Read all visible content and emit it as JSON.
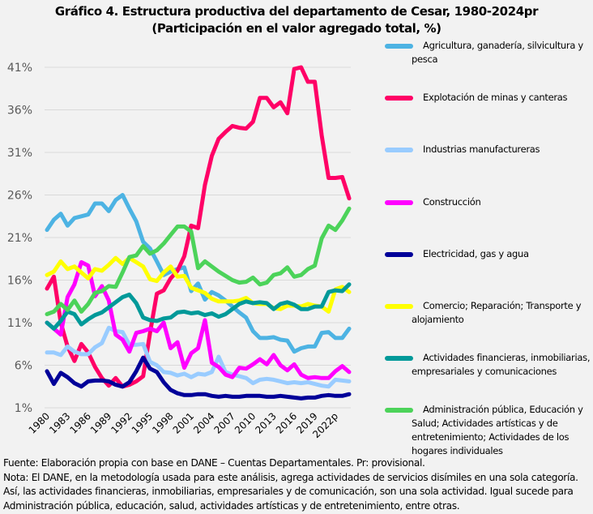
{
  "title_line1": "Gráfico 4. Estructura productiva del departamento de Cesar, 1980-2024pr",
  "title_line2": "(Participación en el valor agregado total, %)",
  "chart_data": {
    "type": "line",
    "title": "Gráfico 4. Estructura productiva del departamento de Cesar, 1980-2024pr (Participación en el valor agregado total, %)",
    "xlabel": "",
    "ylabel": "",
    "ylim": [
      1,
      41
    ],
    "yticks": [
      1,
      6,
      11,
      16,
      21,
      26,
      31,
      36,
      41
    ],
    "ytick_labels": [
      "1%",
      "6%",
      "11%",
      "16%",
      "21%",
      "26%",
      "31%",
      "36%",
      "41%"
    ],
    "grid": true,
    "legend_position": "right",
    "x": [
      1980,
      1981,
      1982,
      1983,
      1984,
      1985,
      1986,
      1987,
      1988,
      1989,
      1990,
      1991,
      1992,
      1993,
      1994,
      1995,
      1996,
      1997,
      1998,
      1999,
      2000,
      2001,
      2002,
      2003,
      2004,
      2005,
      2006,
      2007,
      2008,
      2009,
      2010,
      2011,
      2012,
      2013,
      2014,
      2015,
      2016,
      2017,
      2018,
      2019,
      2020,
      2021,
      2022,
      2023,
      2024
    ],
    "xtick_labels": [
      "1980",
      "1983",
      "1986",
      "1989",
      "1992",
      "1995",
      "1998",
      "2001",
      "2004",
      "2007",
      "2010",
      "2013",
      "2016",
      "2019",
      "2022p"
    ],
    "series": [
      {
        "name": "Agricultura, ganadería, silvicultura y pesca",
        "color": "#4db3e3",
        "values": [
          21.9,
          23.1,
          23.8,
          22.4,
          23.3,
          23.5,
          23.7,
          25.0,
          25.0,
          24.1,
          25.4,
          26.0,
          24.4,
          22.9,
          20.5,
          19.7,
          18.2,
          16.6,
          17.0,
          17.3,
          17.5,
          14.7,
          15.6,
          13.7,
          14.6,
          14.2,
          13.6,
          12.9,
          12.2,
          11.6,
          10.0,
          9.2,
          9.2,
          9.3,
          9.0,
          8.9,
          7.6,
          8.0,
          8.2,
          8.2,
          9.8,
          9.9,
          9.2,
          9.2,
          10.3
        ]
      },
      {
        "name": "Explotación de minas y canteras",
        "color": "#ff0066",
        "values": [
          15.0,
          16.4,
          11.0,
          8.2,
          6.5,
          8.5,
          7.5,
          5.8,
          4.5,
          3.6,
          4.5,
          3.5,
          3.7,
          4.1,
          4.7,
          9.8,
          14.4,
          14.8,
          16.2,
          17.1,
          18.8,
          22.4,
          22.1,
          27.2,
          30.6,
          32.6,
          33.4,
          34.1,
          33.9,
          33.8,
          34.6,
          37.4,
          37.4,
          36.3,
          36.9,
          35.6,
          40.8,
          41.0,
          39.3,
          39.3,
          33.0,
          28.0,
          28.0,
          28.1,
          25.6
        ]
      },
      {
        "name": "Industrias manufactureras",
        "color": "#99ccff",
        "values": [
          7.5,
          7.5,
          7.2,
          8.2,
          7.6,
          7.3,
          7.3,
          8.1,
          8.6,
          10.4,
          10.0,
          9.9,
          8.4,
          8.4,
          8.5,
          6.4,
          6.0,
          5.2,
          5.1,
          4.8,
          5.0,
          4.6,
          5.0,
          4.9,
          5.2,
          7.0,
          5.2,
          4.9,
          4.7,
          4.5,
          3.9,
          4.3,
          4.4,
          4.3,
          4.1,
          3.9,
          4.0,
          3.9,
          4.0,
          3.8,
          3.6,
          3.5,
          4.3,
          4.2,
          4.1
        ]
      },
      {
        "name": "Construcción",
        "color": "#ff00ff",
        "values": [
          11.0,
          10.3,
          9.6,
          14.0,
          15.5,
          18.1,
          17.7,
          14.1,
          15.3,
          13.6,
          9.6,
          9.0,
          7.6,
          9.8,
          10.0,
          10.3,
          10.0,
          11.0,
          8.0,
          8.7,
          5.7,
          7.4,
          8.0,
          11.3,
          6.3,
          5.8,
          4.9,
          4.6,
          5.7,
          5.6,
          6.1,
          6.7,
          6.1,
          7.2,
          6.0,
          5.4,
          6.1,
          4.9,
          4.5,
          4.6,
          4.5,
          4.5,
          5.3,
          5.9,
          5.2
        ]
      },
      {
        "name": "Electricidad, gas y agua",
        "color": "#000099",
        "values": [
          5.3,
          3.8,
          5.1,
          4.6,
          3.9,
          3.5,
          4.1,
          4.2,
          4.2,
          4.1,
          3.7,
          3.5,
          4.0,
          5.3,
          6.9,
          5.6,
          5.2,
          4.0,
          3.1,
          2.7,
          2.5,
          2.5,
          2.6,
          2.6,
          2.4,
          2.3,
          2.4,
          2.3,
          2.3,
          2.4,
          2.4,
          2.4,
          2.3,
          2.3,
          2.4,
          2.3,
          2.2,
          2.1,
          2.2,
          2.2,
          2.4,
          2.5,
          2.4,
          2.4,
          2.6
        ]
      },
      {
        "name": "Comercio; Reparación; Transporte y alojamiento",
        "color": "#ffff00",
        "values": [
          16.6,
          17.0,
          18.2,
          17.3,
          17.6,
          16.9,
          16.2,
          17.3,
          17.1,
          17.8,
          18.6,
          17.9,
          18.6,
          18.1,
          17.6,
          16.1,
          15.9,
          16.9,
          17.6,
          16.4,
          16.5,
          15.1,
          14.8,
          14.5,
          13.8,
          13.5,
          13.5,
          13.5,
          13.6,
          13.9,
          13.3,
          13.2,
          13.2,
          12.7,
          12.6,
          13.0,
          13.0,
          12.9,
          13.2,
          13.0,
          12.9,
          12.3,
          14.9,
          15.2,
          14.6
        ]
      },
      {
        "name": "Actividades financieras, inmobiliarias, empresariales y comunicaciones",
        "color": "#009999",
        "values": [
          11.0,
          10.3,
          11.2,
          12.3,
          12.0,
          10.8,
          11.4,
          11.9,
          12.2,
          12.8,
          13.4,
          14.0,
          14.3,
          13.3,
          11.6,
          11.3,
          11.2,
          11.5,
          11.6,
          12.2,
          12.3,
          12.1,
          12.2,
          11.9,
          12.1,
          11.7,
          12.0,
          12.6,
          13.2,
          13.5,
          13.3,
          13.4,
          13.3,
          12.6,
          13.2,
          13.4,
          13.1,
          12.6,
          12.6,
          12.9,
          12.9,
          14.6,
          14.8,
          14.7,
          15.5
        ]
      },
      {
        "name": "Administración pública, Educación y Salud; Actividades artísticas y de entretenimiento; Actividades de los hogares individuales",
        "color": "#4cd35a",
        "values": [
          12.0,
          12.3,
          13.2,
          12.5,
          13.6,
          12.3,
          13.2,
          14.5,
          14.7,
          15.3,
          15.2,
          16.9,
          18.7,
          18.9,
          20.0,
          19.1,
          19.5,
          20.3,
          21.3,
          22.3,
          22.3,
          21.7,
          17.4,
          18.2,
          17.6,
          17.0,
          16.5,
          16.0,
          15.7,
          15.8,
          16.3,
          15.5,
          15.7,
          16.6,
          16.8,
          17.5,
          16.4,
          16.6,
          17.3,
          17.7,
          20.9,
          22.4,
          21.9,
          23.0,
          24.4
        ]
      }
    ]
  },
  "legend": [
    {
      "label": "Agricultura, ganadería, silvicultura y pesca",
      "color": "#4db3e3"
    },
    {
      "label": "Explotación de minas y canteras",
      "color": "#ff0066"
    },
    {
      "label": "Industrias manufactureras",
      "color": "#99ccff"
    },
    {
      "label": "Construcción",
      "color": "#ff00ff"
    },
    {
      "label": "Electricidad, gas y agua",
      "color": "#000099"
    },
    {
      "label": "Comercio; Reparación; Transporte y alojamiento",
      "color": "#ffff00"
    },
    {
      "label": "Actividades financieras, inmobiliarias, empresariales y comunicaciones",
      "color": "#009999"
    },
    {
      "label": "Administración pública, Educación y Salud; Actividades artísticas y de entretenimiento; Actividades de los hogares individuales",
      "color": "#4cd35a"
    }
  ],
  "footer": {
    "source": "Fuente: Elaboración propia con base en DANE – Cuentas Departamentales. Pr: provisional.",
    "note1": "Nota: El DANE, en la metodología usada para este análisis, agrega actividades de servicios disímiles en una sola categoría.",
    "note2": "Así, las actividades financieras, inmobiliarias, empresariales y de comunicación, son una sola actividad. Igual sucede para",
    "note3": "Administración pública, educación, salud, actividades artísticas y de entretenimiento, entre otras."
  }
}
